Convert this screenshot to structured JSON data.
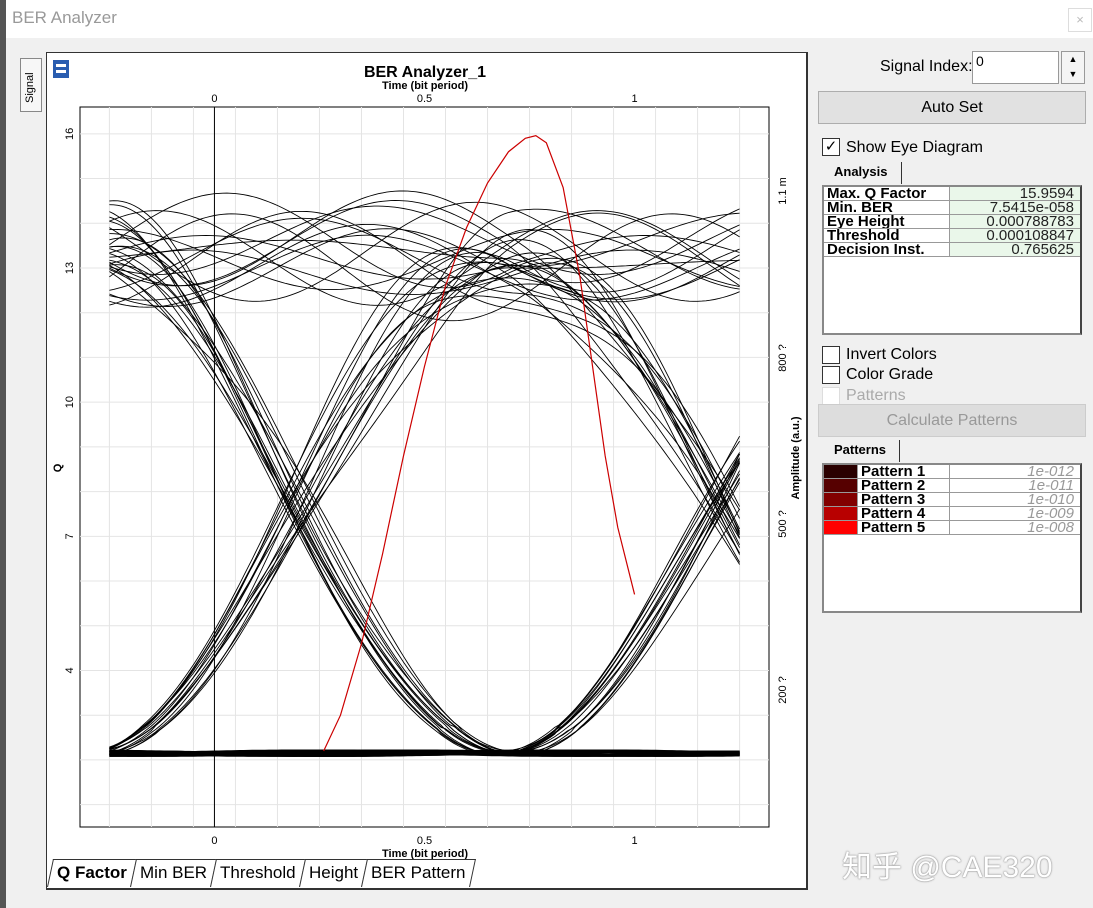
{
  "window": {
    "title": "BER Analyzer",
    "close": "×"
  },
  "side_tab": "Signal",
  "chart_data": {
    "type": "line",
    "title": "BER Analyzer_1",
    "xlabel_top": "Time (bit period)",
    "xlabel_bottom": "Time (bit period)",
    "ylabel_left": "Q",
    "ylabel_right": "Amplitude (a.u.)",
    "xlim": [
      -0.32,
      1.32
    ],
    "ylim_left": [
      0.5,
      16.6
    ],
    "x_ticks": [
      "0",
      "0.5",
      "1"
    ],
    "x_tick_values": [
      0,
      0.5,
      1
    ],
    "y_ticks_left": [
      "16",
      "13",
      "10",
      "7",
      "4"
    ],
    "y_tick_values_left": [
      16,
      13,
      10,
      7,
      4
    ],
    "y_ticks_right": [
      "1.1 m",
      "800 ?",
      "500 ?",
      "200 ?"
    ],
    "grid": true,
    "q_factor_curve": {
      "color": "#cc0000",
      "x": [
        0.26,
        0.3,
        0.35,
        0.4,
        0.45,
        0.5,
        0.55,
        0.6,
        0.65,
        0.7,
        0.74,
        0.765,
        0.79,
        0.83,
        0.87,
        0.9,
        0.93,
        0.96,
        1.0
      ],
      "y": [
        2.2,
        3.0,
        4.6,
        6.6,
        8.8,
        10.8,
        12.6,
        13.9,
        14.9,
        15.6,
        15.9,
        15.96,
        15.8,
        14.8,
        12.8,
        10.8,
        8.8,
        7.2,
        5.7
      ]
    },
    "eye_diagram": {
      "color": "#000000",
      "high_level_q": 13.3,
      "low_level_q": 2.15,
      "crossing_times": [
        0.2,
        1.2
      ]
    }
  },
  "controls": {
    "signal_index_label": "Signal Index:",
    "signal_index": "0",
    "auto_set": "Auto Set",
    "show_eye": "Show Eye Diagram",
    "show_eye_checked": true,
    "analysis_tab": "Analysis",
    "analysis": [
      {
        "k": "Max. Q Factor",
        "v": "15.9594"
      },
      {
        "k": "Min. BER",
        "v": "7.5415e-058"
      },
      {
        "k": "Eye Height",
        "v": "0.000788783"
      },
      {
        "k": "Threshold",
        "v": "0.000108847"
      },
      {
        "k": "Decision Inst.",
        "v": "0.765625"
      }
    ],
    "invert_colors": "Invert Colors",
    "color_grade": "Color Grade",
    "patterns_chk": "Patterns",
    "calc_patterns": "Calculate Patterns",
    "patterns_tab": "Patterns",
    "patterns": [
      {
        "k": "Pattern 1",
        "v": "1e-012",
        "color": "#2a0000"
      },
      {
        "k": "Pattern 2",
        "v": "1e-011",
        "color": "#560000"
      },
      {
        "k": "Pattern 3",
        "v": "1e-010",
        "color": "#820000"
      },
      {
        "k": "Pattern 4",
        "v": "1e-009",
        "color": "#b80000"
      },
      {
        "k": "Pattern 5",
        "v": "1e-008",
        "color": "#ff0000"
      }
    ]
  },
  "bottom_tabs": [
    "Q Factor",
    "Min BER",
    "Threshold",
    "Height",
    "BER Pattern"
  ],
  "watermark": "知乎 @CAE320"
}
